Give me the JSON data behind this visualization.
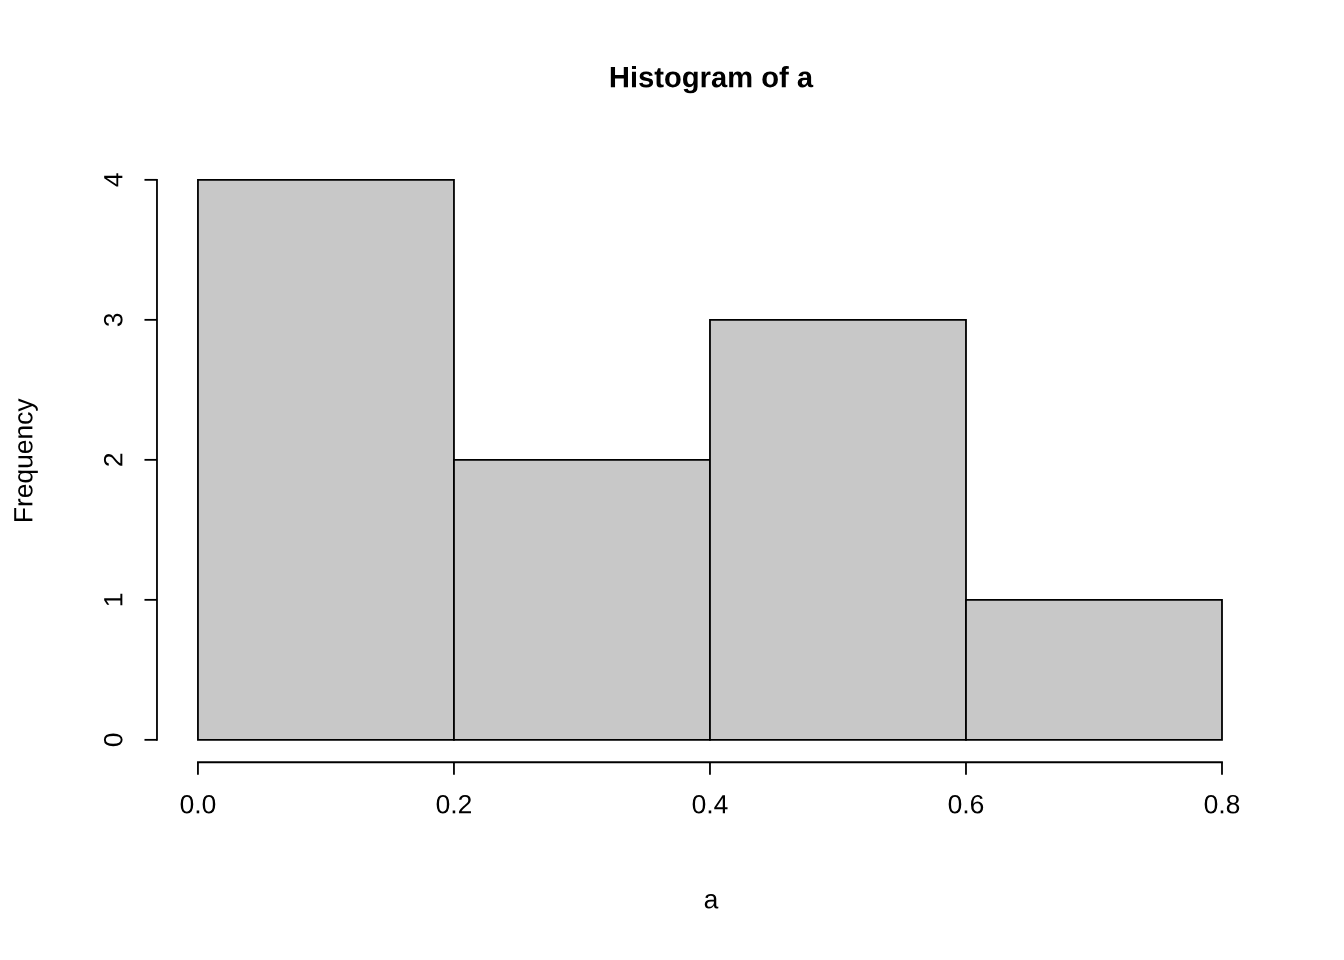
{
  "chart_data": {
    "type": "histogram",
    "title": "Histogram of a",
    "xlabel": "a",
    "ylabel": "Frequency",
    "bins": [
      0,
      0.2,
      0.4,
      0.6,
      0.8
    ],
    "values": [
      4,
      2,
      3,
      1
    ],
    "color": "#c8c8c8",
    "xlim": [
      0,
      0.8
    ],
    "ylim": [
      0,
      4
    ],
    "xticks": [
      {
        "value": 0,
        "label": "0.0"
      },
      0.2,
      0.4,
      0.6,
      0.8
    ],
    "yticks": [
      0,
      1,
      2,
      3,
      4
    ],
    "grid": false
  }
}
